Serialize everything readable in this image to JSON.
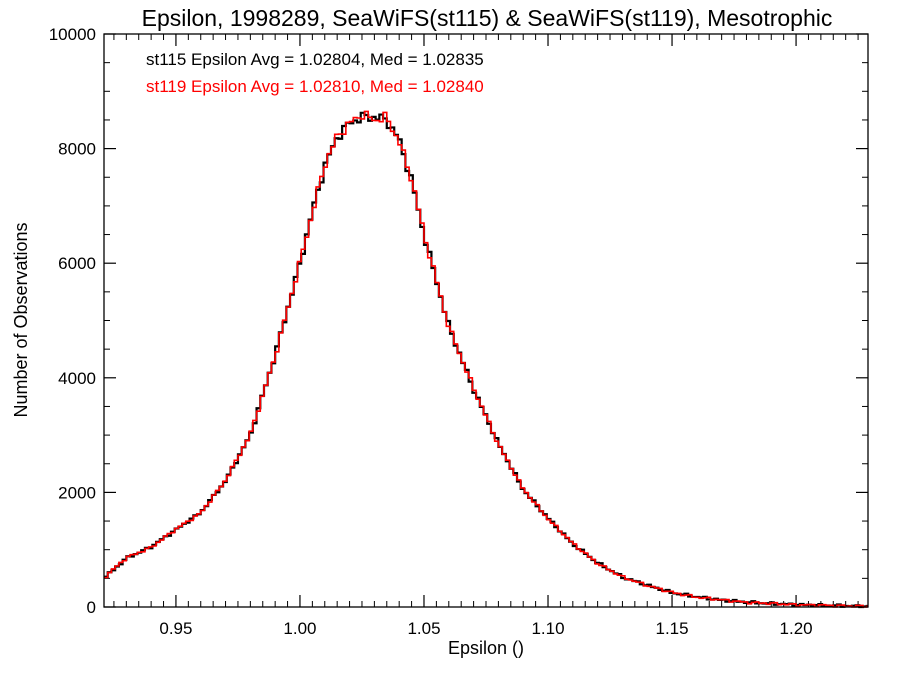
{
  "chart_data": {
    "type": "line",
    "title": "Epsilon, 1998289, SeaWiFS(st115) & SeaWiFS(st119), Mesotrophic",
    "xlabel": "Epsilon ()",
    "ylabel": "Number of Observations",
    "xlim": [
      0.921,
      1.229
    ],
    "ylim": [
      0,
      10000
    ],
    "xticks": [
      0.95,
      1.0,
      1.05,
      1.1,
      1.15,
      1.2
    ],
    "xtick_labels": [
      "0.95",
      "1.00",
      "1.05",
      "1.10",
      "1.15",
      "1.20"
    ],
    "yticks": [
      0,
      2000,
      4000,
      6000,
      8000,
      10000
    ],
    "ytick_labels": [
      "0",
      "2000",
      "4000",
      "6000",
      "8000",
      "10000"
    ],
    "grid": false,
    "line_style": "step",
    "annotations": [
      {
        "text": "st115 Epsilon Avg = 1.02804, Med = 1.02835",
        "color": "#000000"
      },
      {
        "text": "st119 Epsilon Avg = 1.02810, Med = 1.02840",
        "color": "#ff0000"
      }
    ],
    "series": [
      {
        "color": "#000000",
        "x": [
          0.921,
          0.93,
          0.94,
          0.95,
          0.96,
          0.97,
          0.98,
          0.99,
          1.0,
          1.005,
          1.01,
          1.015,
          1.02,
          1.025,
          1.03,
          1.035,
          1.04,
          1.045,
          1.05,
          1.06,
          1.07,
          1.08,
          1.09,
          1.1,
          1.11,
          1.12,
          1.13,
          1.14,
          1.15,
          1.16,
          1.17,
          1.18,
          1.19,
          1.2,
          1.21,
          1.22,
          1.229
        ],
        "y": [
          500,
          850,
          1050,
          1350,
          1650,
          2200,
          3000,
          4400,
          6000,
          6900,
          7700,
          8200,
          8450,
          8550,
          8550,
          8500,
          8150,
          7450,
          6500,
          4900,
          3800,
          2850,
          2050,
          1550,
          1100,
          770,
          520,
          380,
          250,
          175,
          120,
          85,
          60,
          40,
          30,
          20,
          10
        ]
      },
      {
        "color": "#ff0000",
        "x": [
          0.921,
          0.93,
          0.94,
          0.95,
          0.96,
          0.97,
          0.98,
          0.99,
          1.0,
          1.005,
          1.01,
          1.015,
          1.02,
          1.025,
          1.03,
          1.035,
          1.04,
          1.045,
          1.05,
          1.06,
          1.07,
          1.08,
          1.09,
          1.1,
          1.11,
          1.12,
          1.13,
          1.14,
          1.15,
          1.16,
          1.17,
          1.18,
          1.19,
          1.2,
          1.21,
          1.22,
          1.229
        ],
        "y": [
          510,
          860,
          1040,
          1360,
          1640,
          2210,
          3010,
          4380,
          6010,
          6880,
          7720,
          8210,
          8440,
          8600,
          8500,
          8540,
          8120,
          7470,
          6510,
          4890,
          3820,
          2840,
          2060,
          1540,
          1110,
          760,
          525,
          375,
          255,
          170,
          125,
          80,
          62,
          38,
          32,
          18,
          12
        ]
      }
    ]
  }
}
